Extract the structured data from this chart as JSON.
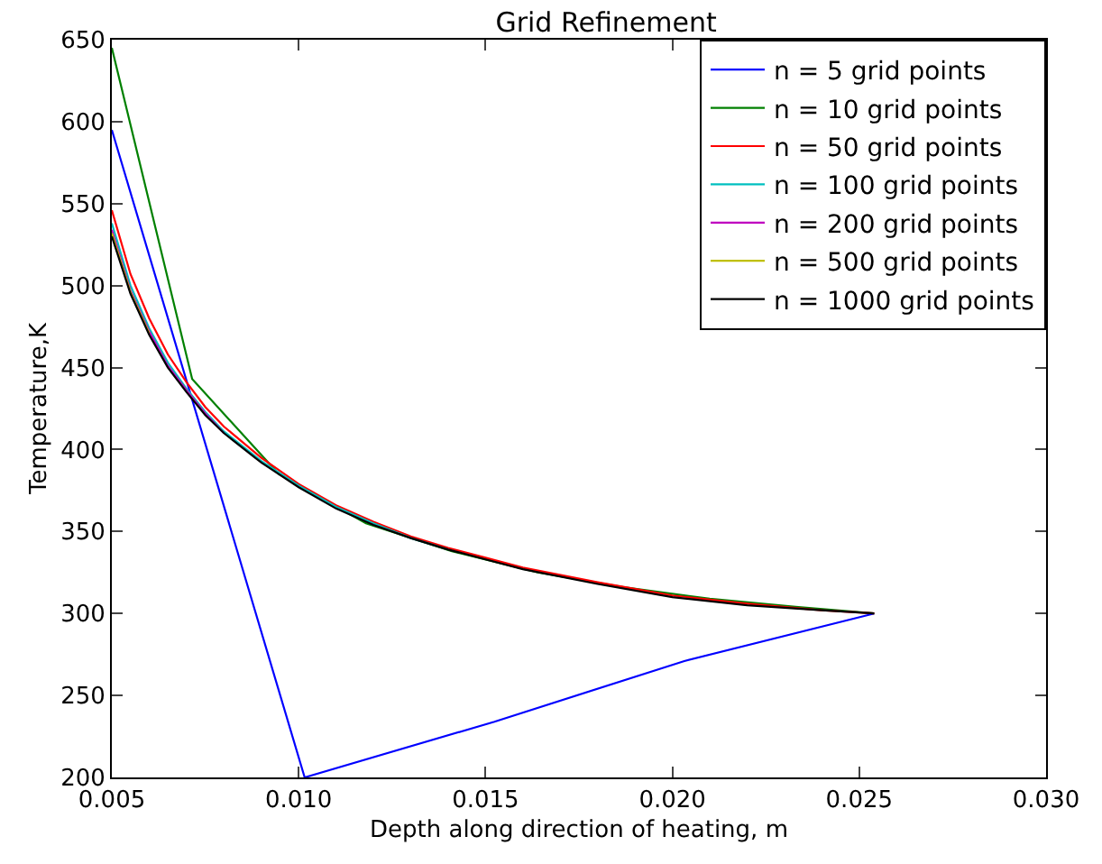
{
  "chart_data": {
    "type": "line",
    "title": "Grid Refinement",
    "xlabel": "Depth along direction of heating, m",
    "ylabel": "Temperature,K",
    "xlim": [
      0.005,
      0.03
    ],
    "xticks": [
      {
        "value": 0.005,
        "label": "0.005"
      },
      {
        "value": 0.01,
        "label": "0.010"
      },
      {
        "value": 0.015,
        "label": "0.015"
      },
      {
        "value": 0.02,
        "label": "0.020"
      },
      {
        "value": 0.025,
        "label": "0.025"
      },
      {
        "value": 0.03,
        "label": "0.030"
      }
    ],
    "ylim": [
      200,
      650
    ],
    "yticks": [
      200,
      250,
      300,
      350,
      400,
      450,
      500,
      550,
      600,
      650
    ],
    "legend": "top right",
    "marker": "none",
    "line_style": "solid",
    "series": [
      {
        "name": "n = 5 grid points",
        "color": "#0000ff",
        "x": [
          0.005,
          0.01016,
          0.01524,
          0.02032,
          0.0254
        ],
        "values": [
          595,
          200,
          234,
          271,
          300
        ]
      },
      {
        "name": "n = 10 grid points",
        "color": "#008000",
        "x": [
          0.005,
          0.00715,
          0.00947,
          0.0118,
          0.0141,
          0.0164,
          0.0187,
          0.021,
          0.0233,
          0.0254
        ],
        "values": [
          645,
          443,
          385,
          355,
          338,
          325,
          316,
          309,
          304,
          300
        ]
      },
      {
        "name": "n = 50 grid points",
        "color": "#ff0000",
        "x": [
          0.005,
          0.0055,
          0.006,
          0.0065,
          0.007,
          0.0075,
          0.008,
          0.009,
          0.01,
          0.011,
          0.012,
          0.013,
          0.014,
          0.015,
          0.016,
          0.018,
          0.02,
          0.022,
          0.024,
          0.0254
        ],
        "values": [
          546,
          507,
          480,
          458,
          441,
          426,
          414,
          395,
          379,
          366,
          356,
          347,
          340,
          334,
          328,
          319,
          311,
          306,
          302,
          300
        ]
      },
      {
        "name": "n = 100 grid points",
        "color": "#00bfbf",
        "x": [
          0.005,
          0.0055,
          0.006,
          0.0065,
          0.007,
          0.0075,
          0.008,
          0.009,
          0.01,
          0.011,
          0.012,
          0.013,
          0.014
        ],
        "values": [
          538,
          500,
          474,
          453,
          437,
          423,
          411,
          393,
          378,
          365,
          355,
          346,
          339
        ]
      },
      {
        "name": "n = 200 grid points",
        "color": "#bf00bf",
        "x": [
          0.005,
          0.0055,
          0.006,
          0.0065,
          0.007,
          0.0075,
          0.008
        ],
        "values": [
          534,
          497,
          472,
          451,
          436,
          422,
          410
        ]
      },
      {
        "name": "n = 500 grid points",
        "color": "#bfbf00",
        "x": [
          0.005,
          0.0055,
          0.006
        ],
        "values": [
          532,
          496,
          471
        ]
      },
      {
        "name": "n = 1000 grid points",
        "color": "#000000",
        "x": [
          0.005,
          0.0055,
          0.006,
          0.0065,
          0.007,
          0.0075,
          0.008,
          0.009,
          0.01,
          0.011,
          0.012,
          0.013,
          0.014,
          0.015,
          0.016,
          0.018,
          0.02,
          0.022,
          0.024,
          0.0254
        ],
        "values": [
          530,
          495,
          470,
          450,
          435,
          421,
          410,
          392,
          377,
          364,
          354,
          346,
          339,
          333,
          327,
          318,
          310,
          305,
          302,
          300
        ]
      }
    ]
  }
}
